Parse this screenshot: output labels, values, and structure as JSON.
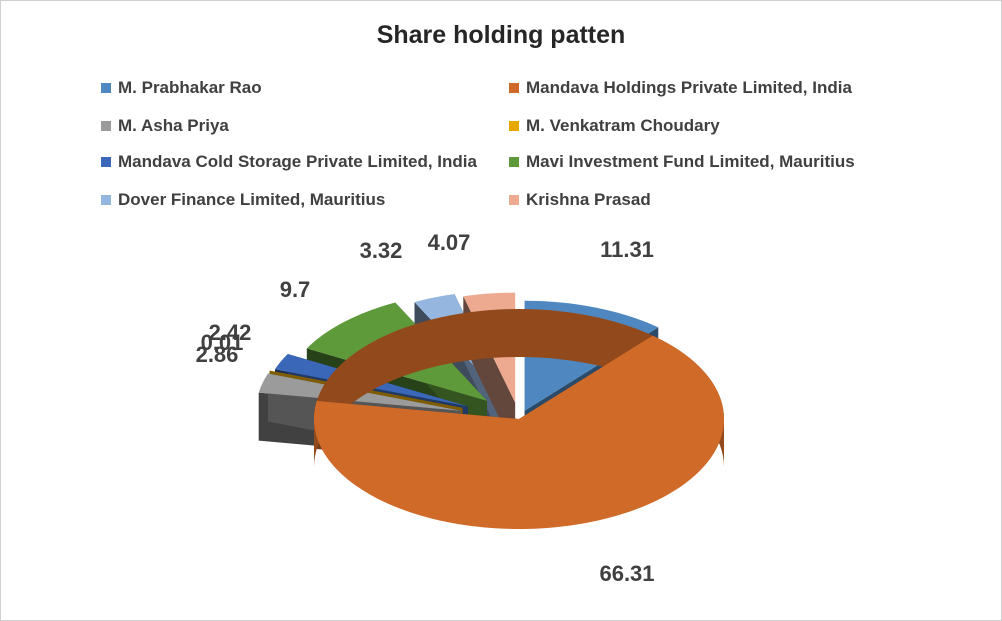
{
  "chart_data": {
    "type": "pie",
    "style": "3d-exploded",
    "title": "Share holding patten",
    "legend_position": "top",
    "series": [
      {
        "name": "M. Prabhakar Rao",
        "value": 11.31,
        "label": "11.31",
        "color": "#4f88c0"
      },
      {
        "name": "Mandava Holdings Private Limited, India",
        "value": 66.31,
        "label": "66.31",
        "color": "#d06a28"
      },
      {
        "name": "M. Asha Priya",
        "value": 2.86,
        "label": "2.86",
        "color": "#9b9b9b"
      },
      {
        "name": "M. Venkatram Choudary",
        "value": 0.01,
        "label": "0.01",
        "color": "#e6a800"
      },
      {
        "name": "Mandava Cold Storage Private Limited, India",
        "value": 2.42,
        "label": "2.42",
        "color": "#3a67b8"
      },
      {
        "name": "Mavi Investment Fund Limited, Mauritius",
        "value": 9.7,
        "label": "9.7",
        "color": "#5e9a3a"
      },
      {
        "name": "Dover Finance Limited, Mauritius",
        "value": 3.32,
        "label": "3.32",
        "color": "#94b6df"
      },
      {
        "name": "Krishna Prasad",
        "value": 4.07,
        "label": "4.07",
        "color": "#eeaa90"
      }
    ]
  }
}
